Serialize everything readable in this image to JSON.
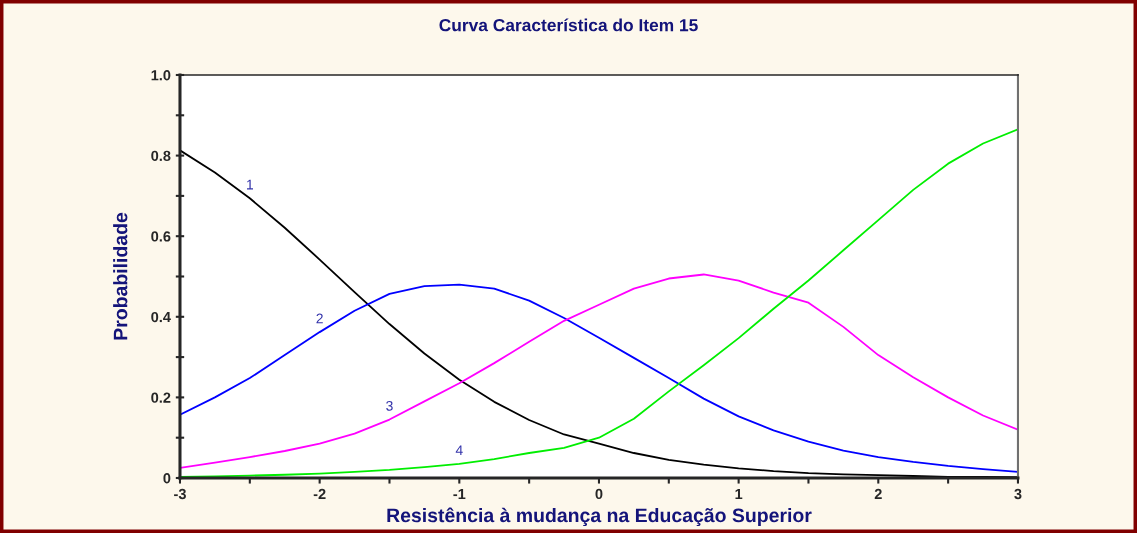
{
  "chart_data": {
    "type": "line",
    "title": "Curva Característica do Item 15",
    "xlabel": "Resistência à mudança na Educação Superior",
    "ylabel": "Probabilidade",
    "x": [
      -3,
      -2.75,
      -2.5,
      -2.25,
      -2,
      -1.75,
      -1.5,
      -1.25,
      -1,
      -0.75,
      -0.5,
      -0.25,
      0,
      0.25,
      0.5,
      0.75,
      1,
      1.25,
      1.5,
      1.75,
      2,
      2.25,
      2.5,
      2.75,
      3
    ],
    "series": [
      {
        "name": "1",
        "color": "#000000",
        "values": [
          0.813,
          0.758,
          0.694,
          0.621,
          0.542,
          0.461,
          0.382,
          0.309,
          0.244,
          0.189,
          0.144,
          0.108,
          0.085,
          0.062,
          0.045,
          0.033,
          0.024,
          0.017,
          0.012,
          0.009,
          0.007,
          0.005,
          0.003,
          0.003,
          0.002
        ]
      },
      {
        "name": "2",
        "color": "#0000ff",
        "values": [
          0.157,
          0.2,
          0.248,
          0.305,
          0.362,
          0.415,
          0.457,
          0.476,
          0.48,
          0.47,
          0.44,
          0.397,
          0.348,
          0.298,
          0.248,
          0.197,
          0.153,
          0.118,
          0.09,
          0.068,
          0.052,
          0.04,
          0.03,
          0.022,
          0.015
        ]
      },
      {
        "name": "3",
        "color": "#ff00ff",
        "values": [
          0.025,
          0.038,
          0.052,
          0.067,
          0.085,
          0.11,
          0.145,
          0.19,
          0.235,
          0.285,
          0.338,
          0.39,
          0.43,
          0.47,
          0.495,
          0.505,
          0.49,
          0.46,
          0.435,
          0.375,
          0.305,
          0.25,
          0.2,
          0.155,
          0.12
        ]
      },
      {
        "name": "4",
        "color": "#00ee00",
        "values": [
          0.003,
          0.004,
          0.006,
          0.008,
          0.011,
          0.015,
          0.02,
          0.027,
          0.035,
          0.047,
          0.062,
          0.075,
          0.1,
          0.147,
          0.215,
          0.28,
          0.347,
          0.42,
          0.49,
          0.565,
          0.64,
          0.715,
          0.78,
          0.83,
          0.865
        ]
      }
    ],
    "xlim": [
      -3,
      3
    ],
    "ylim": [
      0,
      1.0
    ],
    "xticks": [
      -3,
      {
        "value": -2.5,
        "label": null
      },
      -2,
      {
        "value": -1.5,
        "label": null
      },
      -1,
      {
        "value": -0.5,
        "label": null
      },
      0,
      {
        "value": 0.5,
        "label": null
      },
      1,
      {
        "value": 1.5,
        "label": null
      },
      2,
      {
        "value": 2.5,
        "label": null
      },
      3
    ],
    "yticks": [
      0,
      {
        "value": 0.1,
        "label": null
      },
      0.2,
      {
        "value": 0.3,
        "label": null
      },
      0.4,
      {
        "value": 0.5,
        "label": null
      },
      0.6,
      {
        "value": 0.7,
        "label": null
      },
      0.8,
      {
        "value": 0.9,
        "label": null
      },
      {
        "value": 1.0,
        "label": "1.0"
      }
    ],
    "grid": false,
    "legend": false,
    "marker": "none",
    "line_style": "solid"
  }
}
